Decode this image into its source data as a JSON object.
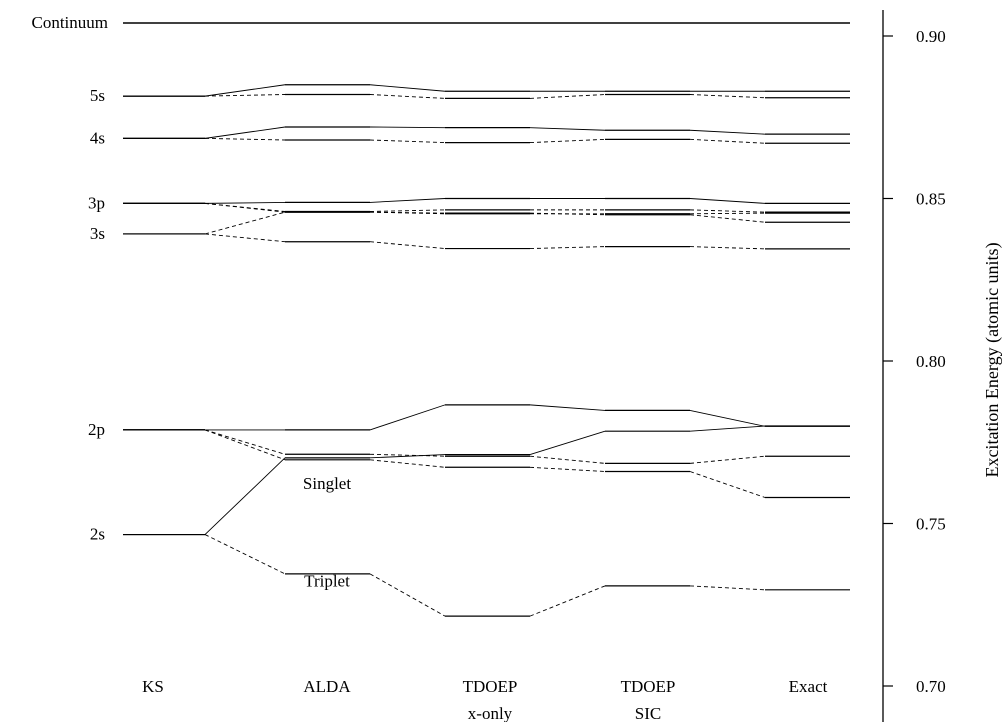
{
  "chart_data": {
    "type": "energy-level-diagram",
    "title": "",
    "ylabel": "Excitation Energy (atomic units)",
    "ylim": [
      0.7,
      0.905
    ],
    "yticks": [
      {
        "value": 0.9,
        "label": "0.90"
      },
      {
        "value": 0.85,
        "label": "0.85"
      },
      {
        "value": 0.8,
        "label": "0.80"
      },
      {
        "value": 0.75,
        "label": "0.75"
      },
      {
        "value": 0.7,
        "label": "0.70"
      }
    ],
    "columns": [
      {
        "id": "KS",
        "label": "KS",
        "sublabel": ""
      },
      {
        "id": "ALDA",
        "label": "ALDA",
        "sublabel": ""
      },
      {
        "id": "TDOEPx",
        "label": "TDOEP",
        "sublabel": "x-only"
      },
      {
        "id": "TDOEPsic",
        "label": "TDOEP",
        "sublabel": "SIC"
      },
      {
        "id": "Exact",
        "label": "Exact",
        "sublabel": ""
      }
    ],
    "continuum": {
      "label": "Continuum",
      "value": 0.904
    },
    "ks_levels": [
      {
        "label": "5s",
        "value": 0.8815
      },
      {
        "label": "4s",
        "value": 0.8685
      },
      {
        "label": "3p",
        "value": 0.8485
      },
      {
        "label": "3s",
        "value": 0.8391
      },
      {
        "label": "2p",
        "value": 0.7788
      },
      {
        "label": "2s",
        "value": 0.7466
      }
    ],
    "annotations": [
      {
        "text": "Singlet",
        "column": "ALDA",
        "value": 0.7625
      },
      {
        "text": "Triplet",
        "column": "ALDA",
        "value": 0.7325
      }
    ],
    "series": [
      {
        "from": "2s",
        "style": "solid",
        "values": [
          0.7466,
          0.7702,
          0.7712,
          0.7784,
          0.78
        ]
      },
      {
        "from": "2s",
        "style": "dashed",
        "values": [
          0.7466,
          0.7345,
          0.7215,
          0.7308,
          0.7296
        ]
      },
      {
        "from": "2p",
        "style": "solid",
        "values": [
          0.7788,
          0.7788,
          0.7865,
          0.7848,
          0.7799
        ]
      },
      {
        "from": "2p",
        "style": "dashed",
        "values": [
          0.7788,
          0.7713,
          0.7707,
          0.7685,
          0.7707
        ]
      },
      {
        "from": "2p",
        "style": "dashed",
        "values": [
          0.7788,
          0.7696,
          0.7673,
          0.766,
          0.758
        ]
      },
      {
        "from": "3s",
        "style": "dashed",
        "values": [
          0.8391,
          0.8458,
          0.8453,
          0.8453,
          0.8455
        ]
      },
      {
        "from": "3s",
        "style": "dashed",
        "values": [
          0.8391,
          0.8367,
          0.8346,
          0.8352,
          0.8345
        ]
      },
      {
        "from": "3p",
        "style": "solid",
        "values": [
          0.8485,
          0.8488,
          0.85,
          0.85,
          0.8485
        ]
      },
      {
        "from": "3p",
        "style": "dashed",
        "values": [
          0.8485,
          0.846,
          0.8465,
          0.8465,
          0.8458
        ]
      },
      {
        "from": "3p",
        "style": "dashed",
        "values": [
          0.8485,
          0.8458,
          0.8455,
          0.845,
          0.8427
        ]
      },
      {
        "from": "4s",
        "style": "solid",
        "values": [
          0.8685,
          0.872,
          0.8718,
          0.871,
          0.8698
        ]
      },
      {
        "from": "4s",
        "style": "dashed",
        "values": [
          0.8685,
          0.868,
          0.8672,
          0.8682,
          0.867
        ]
      },
      {
        "from": "5s",
        "style": "solid",
        "values": [
          0.8815,
          0.885,
          0.883,
          0.883,
          0.883
        ]
      },
      {
        "from": "5s",
        "style": "dashed",
        "values": [
          0.8815,
          0.882,
          0.8808,
          0.882,
          0.881
        ]
      }
    ]
  }
}
